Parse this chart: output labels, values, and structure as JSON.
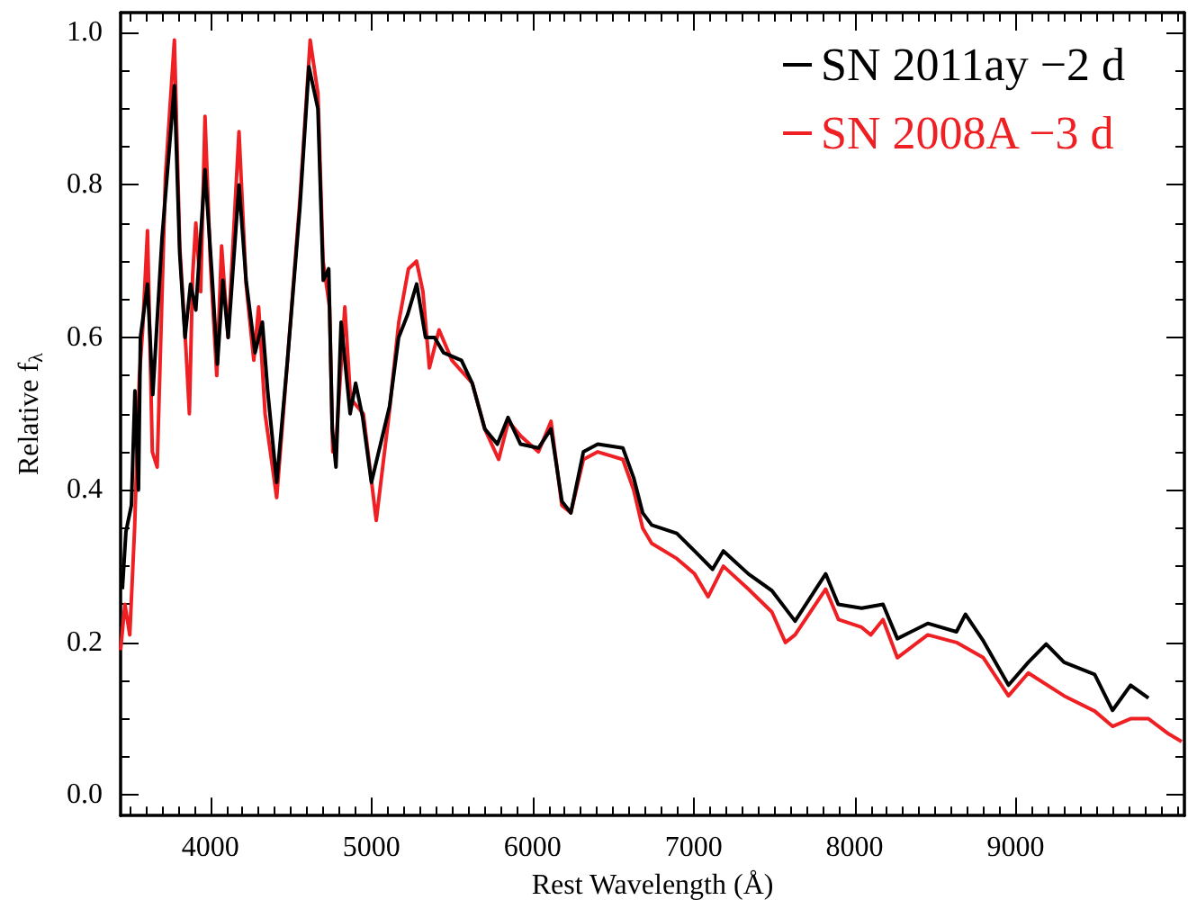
{
  "chart_data": {
    "type": "line",
    "xlabel": "Rest Wavelength (Å)",
    "ylabel": "Relative f$_{λ}$",
    "xlim": [
      3443,
      10047
    ],
    "ylim": [
      -0.027,
      1.026
    ],
    "grid": false,
    "legend": "top right",
    "marker": "none",
    "line_style": "solid",
    "xticks": [
      {
        "value": 3500,
        "label": null
      },
      {
        "value": 3600,
        "label": null
      },
      {
        "value": 3700,
        "label": null
      },
      {
        "value": 3800,
        "label": null
      },
      {
        "value": 3900,
        "label": null
      },
      4000,
      {
        "value": 4100,
        "label": null
      },
      {
        "value": 4200,
        "label": null
      },
      {
        "value": 4300,
        "label": null
      },
      {
        "value": 4400,
        "label": null
      },
      {
        "value": 4500,
        "label": null
      },
      {
        "value": 4600,
        "label": null
      },
      {
        "value": 4700,
        "label": null
      },
      {
        "value": 4800,
        "label": null
      },
      {
        "value": 4900,
        "label": null
      },
      5000,
      {
        "value": 5100,
        "label": null
      },
      {
        "value": 5200,
        "label": null
      },
      {
        "value": 5300,
        "label": null
      },
      {
        "value": 5400,
        "label": null
      },
      {
        "value": 5500,
        "label": null
      },
      {
        "value": 5600,
        "label": null
      },
      {
        "value": 5700,
        "label": null
      },
      {
        "value": 5800,
        "label": null
      },
      {
        "value": 5900,
        "label": null
      },
      6000,
      {
        "value": 6100,
        "label": null
      },
      {
        "value": 6200,
        "label": null
      },
      {
        "value": 6300,
        "label": null
      },
      {
        "value": 6400,
        "label": null
      },
      {
        "value": 6500,
        "label": null
      },
      {
        "value": 6600,
        "label": null
      },
      {
        "value": 6700,
        "label": null
      },
      {
        "value": 6800,
        "label": null
      },
      {
        "value": 6900,
        "label": null
      },
      7000,
      {
        "value": 7100,
        "label": null
      },
      {
        "value": 7200,
        "label": null
      },
      {
        "value": 7300,
        "label": null
      },
      {
        "value": 7400,
        "label": null
      },
      {
        "value": 7500,
        "label": null
      },
      {
        "value": 7600,
        "label": null
      },
      {
        "value": 7700,
        "label": null
      },
      {
        "value": 7800,
        "label": null
      },
      {
        "value": 7900,
        "label": null
      },
      8000,
      {
        "value": 8100,
        "label": null
      },
      {
        "value": 8200,
        "label": null
      },
      {
        "value": 8300,
        "label": null
      },
      {
        "value": 8400,
        "label": null
      },
      {
        "value": 8500,
        "label": null
      },
      {
        "value": 8600,
        "label": null
      },
      {
        "value": 8700,
        "label": null
      },
      {
        "value": 8800,
        "label": null
      },
      {
        "value": 8900,
        "label": null
      },
      9000,
      {
        "value": 9100,
        "label": null
      },
      {
        "value": 9200,
        "label": null
      },
      {
        "value": 9300,
        "label": null
      },
      {
        "value": 9400,
        "label": null
      },
      {
        "value": 9500,
        "label": null
      },
      {
        "value": 9600,
        "label": null
      },
      {
        "value": 9700,
        "label": null
      },
      {
        "value": 9800,
        "label": null
      },
      {
        "value": 9900,
        "label": null
      },
      {
        "value": 10000,
        "label": null
      }
    ],
    "yticks": [
      {
        "value": 0,
        "label": "0.0"
      },
      {
        "value": 0.05,
        "label": null
      },
      {
        "value": 0.1,
        "label": null
      },
      {
        "value": 0.15,
        "label": null
      },
      {
        "value": 0.2,
        "label": "0.2"
      },
      {
        "value": 0.25,
        "label": null
      },
      {
        "value": 0.3,
        "label": null
      },
      {
        "value": 0.35,
        "label": null
      },
      {
        "value": 0.4,
        "label": "0.4"
      },
      {
        "value": 0.45,
        "label": null
      },
      {
        "value": 0.5,
        "label": null
      },
      {
        "value": 0.55,
        "label": null
      },
      {
        "value": 0.6,
        "label": "0.6"
      },
      {
        "value": 0.65,
        "label": null
      },
      {
        "value": 0.7,
        "label": null
      },
      {
        "value": 0.75,
        "label": null
      },
      {
        "value": 0.8,
        "label": "0.8"
      },
      {
        "value": 0.85,
        "label": null
      },
      {
        "value": 0.9,
        "label": null
      },
      {
        "value": 0.95,
        "label": null
      },
      {
        "value": 1.0,
        "label": "1.0"
      }
    ],
    "series": [
      {
        "name": "SN 2008A −3 d",
        "color": "#ee2024",
        "x": [
          3443,
          3470,
          3500,
          3530,
          3560,
          3580,
          3610,
          3640,
          3670,
          3721,
          3777,
          3810,
          3850,
          3870,
          3890,
          3910,
          3940,
          3967,
          4000,
          4040,
          4070,
          4110,
          4178,
          4222,
          4270,
          4300,
          4340,
          4412,
          4479,
          4556,
          4620,
          4668,
          4700,
          4740,
          4760,
          4780,
          4835,
          4870,
          4950,
          5030,
          5110,
          5170,
          5230,
          5280,
          5320,
          5360,
          5420,
          5500,
          5626,
          5704,
          5790,
          5850,
          5930,
          6037,
          6115,
          6182,
          6238,
          6316,
          6405,
          6561,
          6628,
          6684,
          6740,
          6896,
          7006,
          7090,
          7185,
          7340,
          7486,
          7570,
          7630,
          7820,
          7900,
          8043,
          8100,
          8176,
          8265,
          8454,
          8632,
          8799,
          8955,
          9078,
          9300,
          9490,
          9601,
          9713,
          9824,
          9950,
          10030
        ],
        "values": [
          0.19,
          0.25,
          0.21,
          0.35,
          0.55,
          0.61,
          0.74,
          0.45,
          0.43,
          0.81,
          0.99,
          0.72,
          0.58,
          0.5,
          0.68,
          0.75,
          0.66,
          0.89,
          0.7,
          0.55,
          0.72,
          0.6,
          0.87,
          0.67,
          0.57,
          0.64,
          0.5,
          0.39,
          0.57,
          0.78,
          0.99,
          0.92,
          0.7,
          0.64,
          0.45,
          0.46,
          0.64,
          0.52,
          0.5,
          0.36,
          0.5,
          0.62,
          0.69,
          0.7,
          0.66,
          0.56,
          0.61,
          0.57,
          0.54,
          0.48,
          0.44,
          0.49,
          0.47,
          0.45,
          0.49,
          0.38,
          0.37,
          0.44,
          0.45,
          0.44,
          0.4,
          0.35,
          0.33,
          0.31,
          0.29,
          0.26,
          0.3,
          0.27,
          0.24,
          0.2,
          0.21,
          0.27,
          0.23,
          0.22,
          0.21,
          0.23,
          0.18,
          0.21,
          0.2,
          0.18,
          0.13,
          0.16,
          0.13,
          0.11,
          0.09,
          0.1,
          0.1,
          0.08,
          0.07
        ]
      },
      {
        "name": "SN 2011ay −2 d",
        "color": "#000000",
        "x": [
          3454,
          3476,
          3510,
          3532,
          3554,
          3566,
          3610,
          3643,
          3700,
          3777,
          3810,
          3843,
          3877,
          3910,
          3967,
          4011,
          4044,
          4078,
          4111,
          4178,
          4222,
          4278,
          4323,
          4356,
          4412,
          4479,
          4556,
          4612,
          4668,
          4701,
          4735,
          4757,
          4780,
          4812,
          4868,
          4902,
          4946,
          5000,
          5113,
          5169,
          5225,
          5281,
          5336,
          5392,
          5448,
          5559,
          5626,
          5704,
          5782,
          5848,
          5926,
          6037,
          6115,
          6183,
          6238,
          6316,
          6405,
          6561,
          6628,
          6684,
          6740,
          6896,
          7006,
          7118,
          7185,
          7340,
          7486,
          7630,
          7820,
          7898,
          8043,
          8176,
          8265,
          8454,
          8632,
          8688,
          8799,
          8955,
          9078,
          9189,
          9300,
          9490,
          9601,
          9713,
          9824
        ],
        "values": [
          0.27,
          0.345,
          0.38,
          0.53,
          0.4,
          0.6,
          0.67,
          0.525,
          0.73,
          0.93,
          0.71,
          0.6,
          0.67,
          0.636,
          0.82,
          0.68,
          0.565,
          0.675,
          0.6,
          0.8,
          0.675,
          0.58,
          0.62,
          0.53,
          0.41,
          0.57,
          0.77,
          0.955,
          0.9,
          0.675,
          0.69,
          0.48,
          0.43,
          0.62,
          0.5,
          0.54,
          0.495,
          0.41,
          0.51,
          0.6,
          0.63,
          0.67,
          0.6,
          0.6,
          0.58,
          0.57,
          0.54,
          0.48,
          0.46,
          0.495,
          0.46,
          0.455,
          0.48,
          0.385,
          0.37,
          0.45,
          0.46,
          0.455,
          0.416,
          0.37,
          0.354,
          0.343,
          0.32,
          0.296,
          0.32,
          0.29,
          0.268,
          0.228,
          0.29,
          0.25,
          0.245,
          0.25,
          0.205,
          0.225,
          0.214,
          0.237,
          0.202,
          0.144,
          0.174,
          0.198,
          0.174,
          0.158,
          0.111,
          0.144,
          0.127
        ]
      }
    ]
  }
}
